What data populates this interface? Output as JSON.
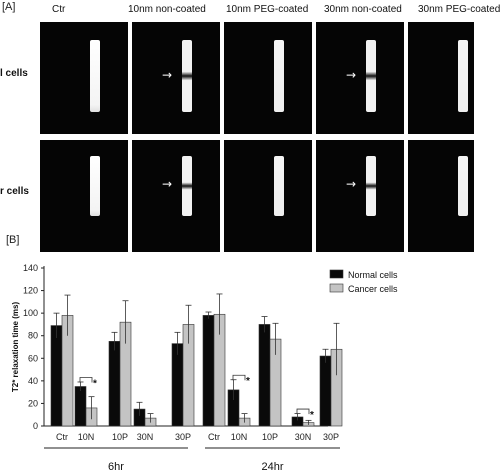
{
  "panel_a": {
    "label": "[A]",
    "columns": [
      "Ctr",
      "10nm non-coated",
      "10nm PEG-coated",
      "30nm non-coated",
      "30nm PEG-coated"
    ],
    "rows": [
      "l cells",
      "r cells"
    ],
    "arrow_glyph": "→"
  },
  "panel_b_label": "[B]",
  "chart_data": {
    "type": "bar",
    "ylabel": "T2* relaxation time (ms)",
    "ylim": [
      0,
      140
    ],
    "yticks": [
      0,
      20,
      40,
      60,
      80,
      100,
      120,
      140
    ],
    "categories": [
      "Ctr",
      "10N",
      "10P",
      "30N",
      "30P",
      "Ctr",
      "10N",
      "10P",
      "30N",
      "30P"
    ],
    "groups": [
      {
        "label": "6hr",
        "categories": [
          "Ctr",
          "10N",
          "10P",
          "30N",
          "30P"
        ]
      },
      {
        "label": "24hr",
        "categories": [
          "Ctr",
          "10N",
          "10P",
          "30N",
          "30P"
        ]
      }
    ],
    "series": [
      {
        "name": "Normal cells",
        "color": "#0a0a0a",
        "values": [
          89,
          35,
          75,
          15,
          73,
          98,
          32,
          90,
          8,
          62
        ],
        "errors": [
          11,
          4,
          8,
          6,
          10,
          3,
          9,
          7,
          3,
          6
        ]
      },
      {
        "name": "Cancer cells",
        "color": "#c4c4c4",
        "values": [
          98,
          16,
          92,
          7,
          90,
          99,
          7,
          77,
          3,
          68
        ],
        "errors": [
          18,
          10,
          19,
          4,
          17,
          18,
          4,
          14,
          2,
          23
        ]
      }
    ],
    "significance": [
      {
        "category_index": 1,
        "mark": "*"
      },
      {
        "category_index": 6,
        "mark": "*"
      },
      {
        "category_index": 8,
        "mark": "*"
      }
    ],
    "legend_position": "top-right"
  }
}
